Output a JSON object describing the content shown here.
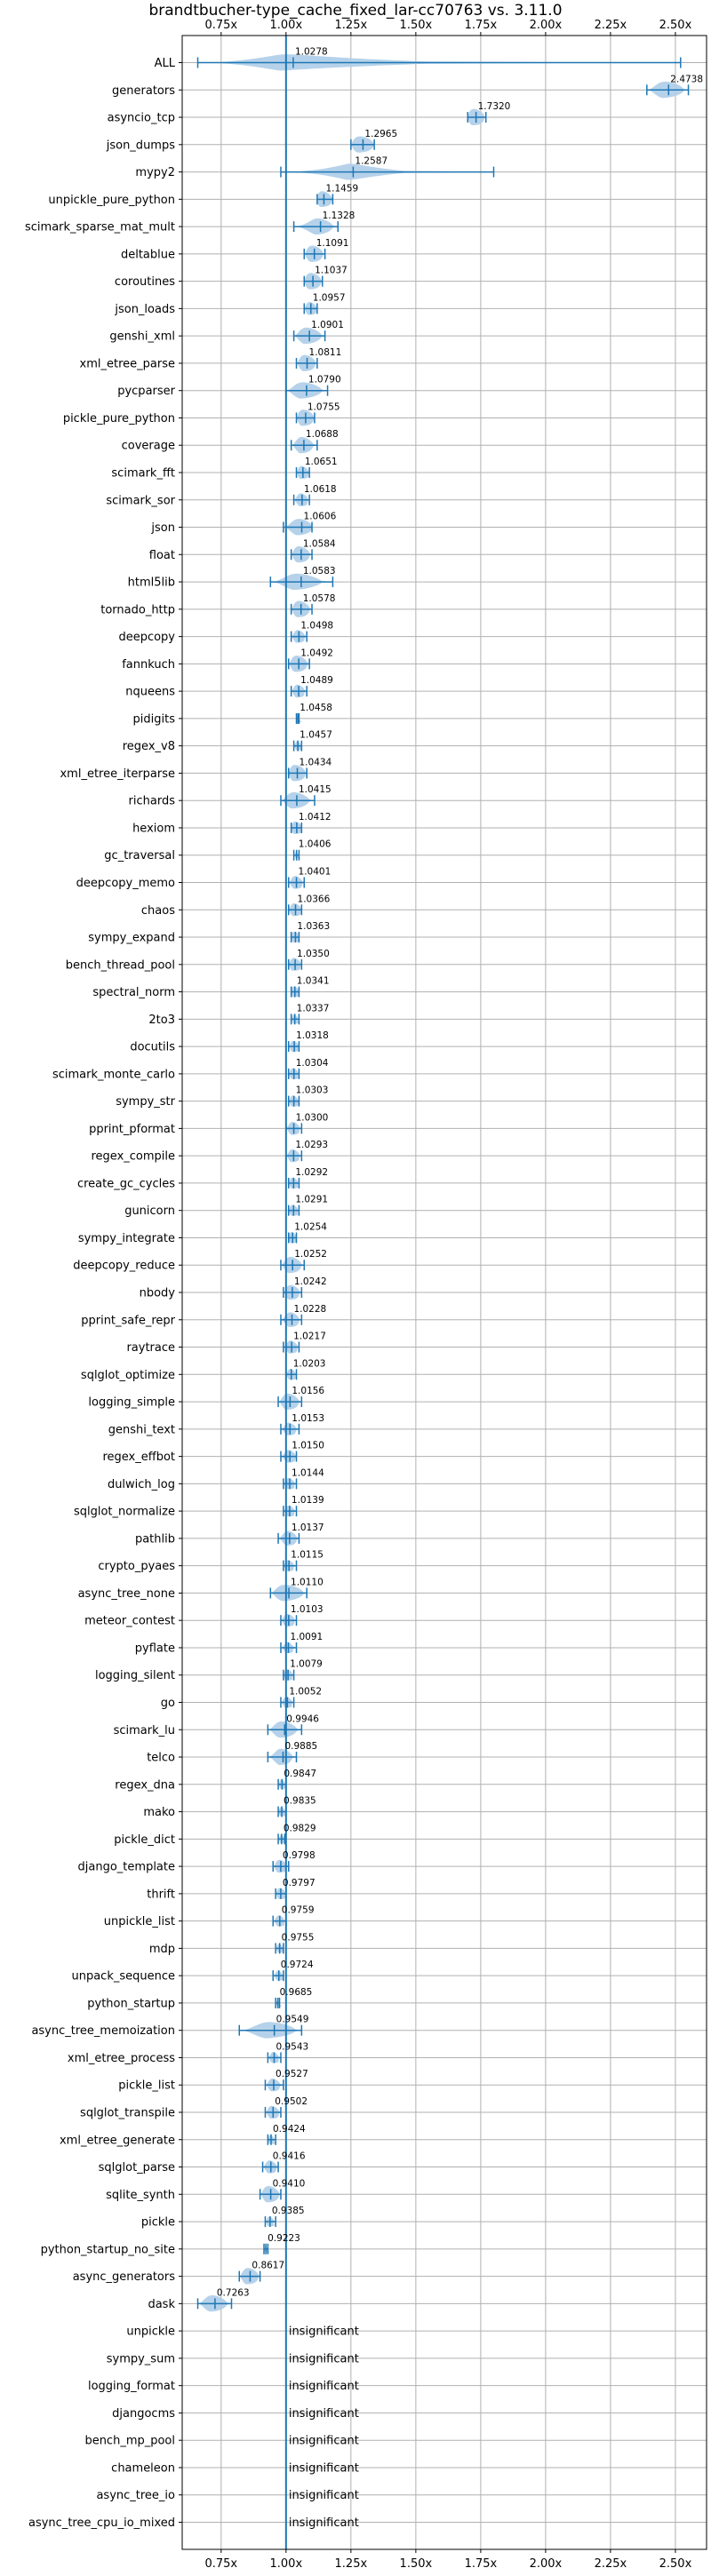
{
  "chart_data": {
    "type": "violin",
    "title": "brandtbucher-type_cache_fixed_lar-cc70763 vs. 3.11.0",
    "xlim": [
      0.6,
      2.62
    ],
    "xticks": [
      "0.75x",
      "1.00x",
      "1.25x",
      "1.50x",
      "1.75x",
      "2.00x",
      "2.25x",
      "2.50x"
    ],
    "xtick_values": [
      0.75,
      1.0,
      1.25,
      1.5,
      1.75,
      2.0,
      2.25,
      2.5
    ],
    "reference_line": 1.0,
    "grid": true,
    "colors": {
      "violin": "#aecde8",
      "stroke": "#1f77b4",
      "reference": "#1f77b4",
      "grid": "#b0b0b0"
    },
    "insignificant_label": "insignificant",
    "rows": [
      {
        "name": "ALL",
        "value": 1.0278,
        "label": "1.0278",
        "min": 0.66,
        "max": 2.52,
        "core": 0.1
      },
      {
        "name": "generators",
        "value": 2.4738,
        "label": "2.4738",
        "min": 2.39,
        "max": 2.55,
        "core": 0.05
      },
      {
        "name": "asyncio_tcp",
        "value": 1.732,
        "label": "1.7320",
        "min": 1.7,
        "max": 1.77,
        "core": 0.03
      },
      {
        "name": "json_dumps",
        "value": 1.2965,
        "label": "1.2965",
        "min": 1.25,
        "max": 1.34,
        "core": 0.04
      },
      {
        "name": "mypy2",
        "value": 1.2587,
        "label": "1.2587",
        "min": 0.98,
        "max": 1.8,
        "core": 0.05
      },
      {
        "name": "unpickle_pure_python",
        "value": 1.1459,
        "label": "1.1459",
        "min": 1.12,
        "max": 1.18,
        "core": 0.03
      },
      {
        "name": "scimark_sparse_mat_mult",
        "value": 1.1328,
        "label": "1.1328",
        "min": 1.03,
        "max": 1.2,
        "core": 0.04
      },
      {
        "name": "deltablue",
        "value": 1.1091,
        "label": "1.1091",
        "min": 1.07,
        "max": 1.15,
        "core": 0.03
      },
      {
        "name": "coroutines",
        "value": 1.1037,
        "label": "1.1037",
        "min": 1.07,
        "max": 1.14,
        "core": 0.03
      },
      {
        "name": "json_loads",
        "value": 1.0957,
        "label": "1.0957",
        "min": 1.07,
        "max": 1.12,
        "core": 0.02
      },
      {
        "name": "genshi_xml",
        "value": 1.0901,
        "label": "1.0901",
        "min": 1.03,
        "max": 1.15,
        "core": 0.04
      },
      {
        "name": "xml_etree_parse",
        "value": 1.0811,
        "label": "1.0811",
        "min": 1.04,
        "max": 1.12,
        "core": 0.03
      },
      {
        "name": "pycparser",
        "value": 1.079,
        "label": "1.0790",
        "min": 1.0,
        "max": 1.16,
        "core": 0.05
      },
      {
        "name": "pickle_pure_python",
        "value": 1.0755,
        "label": "1.0755",
        "min": 1.04,
        "max": 1.11,
        "core": 0.03
      },
      {
        "name": "coverage",
        "value": 1.0688,
        "label": "1.0688",
        "min": 1.02,
        "max": 1.12,
        "core": 0.03
      },
      {
        "name": "scimark_fft",
        "value": 1.0651,
        "label": "1.0651",
        "min": 1.04,
        "max": 1.09,
        "core": 0.02
      },
      {
        "name": "scimark_sor",
        "value": 1.0618,
        "label": "1.0618",
        "min": 1.03,
        "max": 1.09,
        "core": 0.02
      },
      {
        "name": "json",
        "value": 1.0606,
        "label": "1.0606",
        "min": 0.99,
        "max": 1.1,
        "core": 0.04
      },
      {
        "name": "float",
        "value": 1.0584,
        "label": "1.0584",
        "min": 1.02,
        "max": 1.1,
        "core": 0.03
      },
      {
        "name": "html5lib",
        "value": 1.0583,
        "label": "1.0583",
        "min": 0.94,
        "max": 1.18,
        "core": 0.06
      },
      {
        "name": "tornado_http",
        "value": 1.0578,
        "label": "1.0578",
        "min": 1.02,
        "max": 1.1,
        "core": 0.03
      },
      {
        "name": "deepcopy",
        "value": 1.0498,
        "label": "1.0498",
        "min": 1.02,
        "max": 1.08,
        "core": 0.02
      },
      {
        "name": "fannkuch",
        "value": 1.0492,
        "label": "1.0492",
        "min": 1.01,
        "max": 1.09,
        "core": 0.03
      },
      {
        "name": "nqueens",
        "value": 1.0489,
        "label": "1.0489",
        "min": 1.02,
        "max": 1.08,
        "core": 0.02
      },
      {
        "name": "pidigits",
        "value": 1.0458,
        "label": "1.0458",
        "min": 1.04,
        "max": 1.05,
        "core": 0.005
      },
      {
        "name": "regex_v8",
        "value": 1.0457,
        "label": "1.0457",
        "min": 1.03,
        "max": 1.06,
        "core": 0.01
      },
      {
        "name": "xml_etree_iterparse",
        "value": 1.0434,
        "label": "1.0434",
        "min": 1.01,
        "max": 1.08,
        "core": 0.03
      },
      {
        "name": "richards",
        "value": 1.0415,
        "label": "1.0415",
        "min": 0.98,
        "max": 1.11,
        "core": 0.04
      },
      {
        "name": "hexiom",
        "value": 1.0412,
        "label": "1.0412",
        "min": 1.02,
        "max": 1.06,
        "core": 0.02
      },
      {
        "name": "gc_traversal",
        "value": 1.0406,
        "label": "1.0406",
        "min": 1.03,
        "max": 1.05,
        "core": 0.005
      },
      {
        "name": "deepcopy_memo",
        "value": 1.0401,
        "label": "1.0401",
        "min": 1.01,
        "max": 1.07,
        "core": 0.02
      },
      {
        "name": "chaos",
        "value": 1.0366,
        "label": "1.0366",
        "min": 1.01,
        "max": 1.06,
        "core": 0.02
      },
      {
        "name": "sympy_expand",
        "value": 1.0363,
        "label": "1.0363",
        "min": 1.02,
        "max": 1.05,
        "core": 0.015
      },
      {
        "name": "bench_thread_pool",
        "value": 1.035,
        "label": "1.0350",
        "min": 1.01,
        "max": 1.06,
        "core": 0.02
      },
      {
        "name": "spectral_norm",
        "value": 1.0341,
        "label": "1.0341",
        "min": 1.02,
        "max": 1.05,
        "core": 0.015
      },
      {
        "name": "2to3",
        "value": 1.0337,
        "label": "1.0337",
        "min": 1.02,
        "max": 1.05,
        "core": 0.01
      },
      {
        "name": "docutils",
        "value": 1.0318,
        "label": "1.0318",
        "min": 1.01,
        "max": 1.05,
        "core": 0.015
      },
      {
        "name": "scimark_monte_carlo",
        "value": 1.0304,
        "label": "1.0304",
        "min": 1.01,
        "max": 1.05,
        "core": 0.015
      },
      {
        "name": "sympy_str",
        "value": 1.0303,
        "label": "1.0303",
        "min": 1.01,
        "max": 1.05,
        "core": 0.015
      },
      {
        "name": "pprint_pformat",
        "value": 1.03,
        "label": "1.0300",
        "min": 1.0,
        "max": 1.06,
        "core": 0.02
      },
      {
        "name": "regex_compile",
        "value": 1.0293,
        "label": "1.0293",
        "min": 1.0,
        "max": 1.06,
        "core": 0.02
      },
      {
        "name": "create_gc_cycles",
        "value": 1.0292,
        "label": "1.0292",
        "min": 1.01,
        "max": 1.05,
        "core": 0.015
      },
      {
        "name": "gunicorn",
        "value": 1.0291,
        "label": "1.0291",
        "min": 1.01,
        "max": 1.05,
        "core": 0.015
      },
      {
        "name": "sympy_integrate",
        "value": 1.0254,
        "label": "1.0254",
        "min": 1.01,
        "max": 1.04,
        "core": 0.015
      },
      {
        "name": "deepcopy_reduce",
        "value": 1.0252,
        "label": "1.0252",
        "min": 0.98,
        "max": 1.07,
        "core": 0.03
      },
      {
        "name": "nbody",
        "value": 1.0242,
        "label": "1.0242",
        "min": 0.99,
        "max": 1.06,
        "core": 0.025
      },
      {
        "name": "pprint_safe_repr",
        "value": 1.0228,
        "label": "1.0228",
        "min": 0.98,
        "max": 1.06,
        "core": 0.025
      },
      {
        "name": "raytrace",
        "value": 1.0217,
        "label": "1.0217",
        "min": 0.99,
        "max": 1.05,
        "core": 0.02
      },
      {
        "name": "sqlglot_optimize",
        "value": 1.0203,
        "label": "1.0203",
        "min": 1.0,
        "max": 1.04,
        "core": 0.015
      },
      {
        "name": "logging_simple",
        "value": 1.0156,
        "label": "1.0156",
        "min": 0.97,
        "max": 1.06,
        "core": 0.03
      },
      {
        "name": "genshi_text",
        "value": 1.0153,
        "label": "1.0153",
        "min": 0.98,
        "max": 1.05,
        "core": 0.02
      },
      {
        "name": "regex_effbot",
        "value": 1.015,
        "label": "1.0150",
        "min": 0.98,
        "max": 1.04,
        "core": 0.02
      },
      {
        "name": "dulwich_log",
        "value": 1.0144,
        "label": "1.0144",
        "min": 0.99,
        "max": 1.04,
        "core": 0.015
      },
      {
        "name": "sqlglot_normalize",
        "value": 1.0139,
        "label": "1.0139",
        "min": 0.99,
        "max": 1.04,
        "core": 0.015
      },
      {
        "name": "pathlib",
        "value": 1.0137,
        "label": "1.0137",
        "min": 0.97,
        "max": 1.05,
        "core": 0.025
      },
      {
        "name": "crypto_pyaes",
        "value": 1.0115,
        "label": "1.0115",
        "min": 0.99,
        "max": 1.04,
        "core": 0.015
      },
      {
        "name": "async_tree_none",
        "value": 1.011,
        "label": "1.0110",
        "min": 0.94,
        "max": 1.08,
        "core": 0.05
      },
      {
        "name": "meteor_contest",
        "value": 1.0103,
        "label": "1.0103",
        "min": 0.98,
        "max": 1.04,
        "core": 0.02
      },
      {
        "name": "pyflate",
        "value": 1.0091,
        "label": "1.0091",
        "min": 0.98,
        "max": 1.04,
        "core": 0.015
      },
      {
        "name": "logging_silent",
        "value": 1.0079,
        "label": "1.0079",
        "min": 0.99,
        "max": 1.03,
        "core": 0.015
      },
      {
        "name": "go",
        "value": 1.0052,
        "label": "1.0052",
        "min": 0.98,
        "max": 1.03,
        "core": 0.015
      },
      {
        "name": "scimark_lu",
        "value": 0.9946,
        "label": "0.9946",
        "min": 0.93,
        "max": 1.06,
        "core": 0.04
      },
      {
        "name": "telco",
        "value": 0.9885,
        "label": "0.9885",
        "min": 0.93,
        "max": 1.04,
        "core": 0.03
      },
      {
        "name": "regex_dna",
        "value": 0.9847,
        "label": "0.9847",
        "min": 0.97,
        "max": 1.0,
        "core": 0.01
      },
      {
        "name": "mako",
        "value": 0.9835,
        "label": "0.9835",
        "min": 0.97,
        "max": 1.0,
        "core": 0.01
      },
      {
        "name": "pickle_dict",
        "value": 0.9829,
        "label": "0.9829",
        "min": 0.97,
        "max": 0.995,
        "core": 0.008
      },
      {
        "name": "django_template",
        "value": 0.9798,
        "label": "0.9798",
        "min": 0.95,
        "max": 1.01,
        "core": 0.02
      },
      {
        "name": "thrift",
        "value": 0.9797,
        "label": "0.9797",
        "min": 0.96,
        "max": 1.0,
        "core": 0.015
      },
      {
        "name": "unpickle_list",
        "value": 0.9759,
        "label": "0.9759",
        "min": 0.95,
        "max": 1.0,
        "core": 0.015
      },
      {
        "name": "mdp",
        "value": 0.9755,
        "label": "0.9755",
        "min": 0.96,
        "max": 0.99,
        "core": 0.01
      },
      {
        "name": "unpack_sequence",
        "value": 0.9724,
        "label": "0.9724",
        "min": 0.95,
        "max": 0.99,
        "core": 0.012
      },
      {
        "name": "python_startup",
        "value": 0.9685,
        "label": "0.9685",
        "min": 0.96,
        "max": 0.975,
        "core": 0.004
      },
      {
        "name": "async_tree_memoization",
        "value": 0.9549,
        "label": "0.9549",
        "min": 0.82,
        "max": 1.06,
        "core": 0.07
      },
      {
        "name": "xml_etree_process",
        "value": 0.9543,
        "label": "0.9543",
        "min": 0.93,
        "max": 0.98,
        "core": 0.015
      },
      {
        "name": "pickle_list",
        "value": 0.9527,
        "label": "0.9527",
        "min": 0.92,
        "max": 0.99,
        "core": 0.02
      },
      {
        "name": "sqlglot_transpile",
        "value": 0.9502,
        "label": "0.9502",
        "min": 0.92,
        "max": 0.98,
        "core": 0.02
      },
      {
        "name": "xml_etree_generate",
        "value": 0.9424,
        "label": "0.9424",
        "min": 0.93,
        "max": 0.96,
        "core": 0.01
      },
      {
        "name": "sqlglot_parse",
        "value": 0.9416,
        "label": "0.9416",
        "min": 0.91,
        "max": 0.97,
        "core": 0.02
      },
      {
        "name": "sqlite_synth",
        "value": 0.941,
        "label": "0.9410",
        "min": 0.9,
        "max": 0.98,
        "core": 0.03
      },
      {
        "name": "pickle",
        "value": 0.9385,
        "label": "0.9385",
        "min": 0.92,
        "max": 0.96,
        "core": 0.012
      },
      {
        "name": "python_startup_no_site",
        "value": 0.9223,
        "label": "0.9223",
        "min": 0.915,
        "max": 0.93,
        "core": 0.004
      },
      {
        "name": "async_generators",
        "value": 0.8617,
        "label": "0.8617",
        "min": 0.82,
        "max": 0.9,
        "core": 0.03
      },
      {
        "name": "dask",
        "value": 0.7263,
        "label": "0.7263",
        "min": 0.66,
        "max": 0.79,
        "core": 0.04
      },
      {
        "name": "unpickle",
        "value": null,
        "label": "insignificant"
      },
      {
        "name": "sympy_sum",
        "value": null,
        "label": "insignificant"
      },
      {
        "name": "logging_format",
        "value": null,
        "label": "insignificant"
      },
      {
        "name": "djangocms",
        "value": null,
        "label": "insignificant"
      },
      {
        "name": "bench_mp_pool",
        "value": null,
        "label": "insignificant"
      },
      {
        "name": "chameleon",
        "value": null,
        "label": "insignificant"
      },
      {
        "name": "async_tree_io",
        "value": null,
        "label": "insignificant"
      },
      {
        "name": "async_tree_cpu_io_mixed",
        "value": null,
        "label": "insignificant"
      }
    ]
  }
}
